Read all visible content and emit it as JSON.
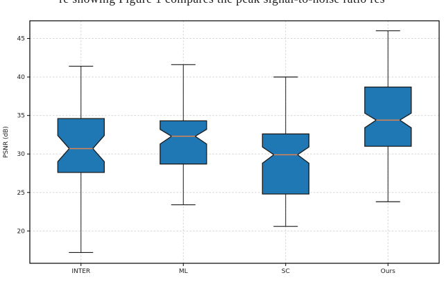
{
  "page": {
    "background": "#ffffff",
    "caption_fragment": "re showing Figure 1 compares the peak signal-to-noise ratio res"
  },
  "chart_data": {
    "type": "boxplot",
    "title": "",
    "xlabel": "",
    "ylabel": "PSNR (dB)",
    "categories": [
      "INTER",
      "ML",
      "SC",
      "Ours"
    ],
    "yticks": [
      20,
      25,
      30,
      35,
      40,
      45
    ],
    "ylim": [
      15.8,
      47.3
    ],
    "grid": "both, dashed",
    "legend": "none",
    "notched": true,
    "series": [
      {
        "name": "INTER",
        "whisker_low": 17.2,
        "q1": 27.6,
        "median": 30.7,
        "q3": 34.6,
        "whisker_high": 41.4,
        "notch_low": 29.0,
        "notch_high": 32.4
      },
      {
        "name": "ML",
        "whisker_low": 23.4,
        "q1": 28.7,
        "median": 32.3,
        "q3": 34.3,
        "whisker_high": 41.6,
        "notch_low": 31.3,
        "notch_high": 33.2
      },
      {
        "name": "SC",
        "whisker_low": 20.6,
        "q1": 24.8,
        "median": 29.9,
        "q3": 32.6,
        "whisker_high": 40.0,
        "notch_low": 28.8,
        "notch_high": 30.9
      },
      {
        "name": "Ours",
        "whisker_low": 23.8,
        "q1": 31.0,
        "median": 34.4,
        "q3": 38.7,
        "whisker_high": 46.0,
        "notch_low": 33.4,
        "notch_high": 35.3
      }
    ],
    "colors": {
      "box_fill": "#1f77b4",
      "box_edge": "#1b1b1b",
      "median": "#dd8452",
      "whisker": "#1b1b1b",
      "grid": "#cfcfcf",
      "frame": "#000000",
      "text": "#1b1b1b"
    }
  }
}
